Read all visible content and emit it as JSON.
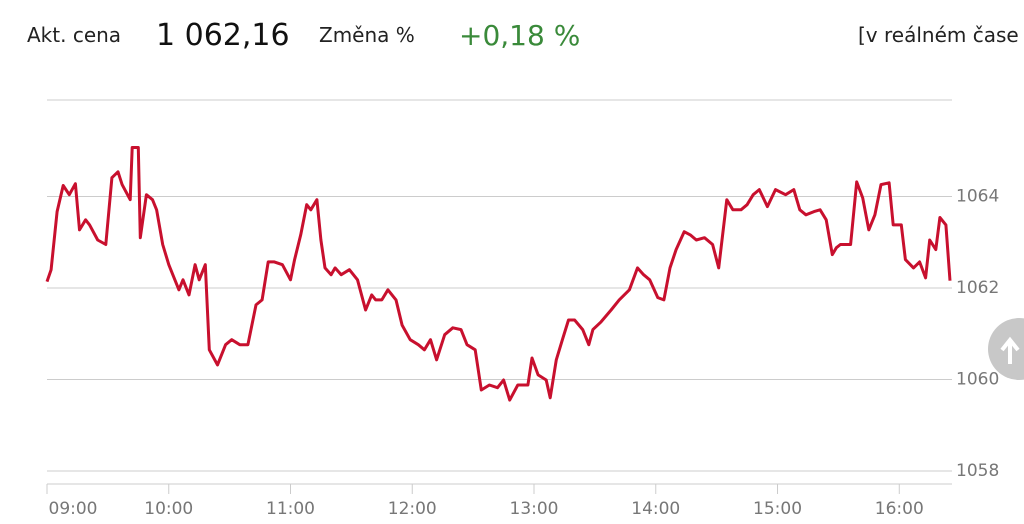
{
  "header": {
    "price_label": "Akt. cena",
    "price": "1 062,16",
    "change_label": "Změna %",
    "change": "+0,18 %",
    "realtime": "[v reálném čase"
  },
  "chart_data": {
    "type": "line",
    "x": [
      "09:00",
      "09:02",
      "09:05",
      "09:08",
      "09:11",
      "09:14",
      "09:16",
      "09:19",
      "09:21",
      "09:25",
      "09:29",
      "09:32",
      "09:35",
      "09:37",
      "09:41",
      "09:42",
      "09:45",
      "09:46",
      "09:49",
      "09:52",
      "09:54",
      "09:57",
      "10:00",
      "10:02",
      "10:05",
      "10:07",
      "10:10",
      "10:13",
      "10:15",
      "10:18",
      "10:20",
      "10:24",
      "10:28",
      "10:31",
      "10:35",
      "10:39",
      "10:43",
      "10:46",
      "10:49",
      "10:52",
      "10:56",
      "11:00",
      "11:02",
      "11:05",
      "11:08",
      "11:10",
      "11:13",
      "11:15",
      "11:17",
      "11:20",
      "11:22",
      "11:25",
      "11:29",
      "11:33",
      "11:37",
      "11:40",
      "11:42",
      "11:45",
      "11:48",
      "11:52",
      "11:55",
      "11:59",
      "12:03",
      "12:06",
      "12:09",
      "12:12",
      "12:16",
      "12:20",
      "12:24",
      "12:27",
      "12:31",
      "12:34",
      "12:38",
      "12:42",
      "12:45",
      "12:48",
      "12:52",
      "12:57",
      "12:59",
      "13:02",
      "13:06",
      "13:08",
      "13:11",
      "13:14",
      "13:17",
      "13:20",
      "13:24",
      "13:27",
      "13:29",
      "13:33",
      "13:38",
      "13:42",
      "13:47",
      "13:51",
      "13:54",
      "13:57",
      "14:01",
      "14:04",
      "14:07",
      "14:10",
      "14:14",
      "14:17",
      "14:20",
      "14:24",
      "14:28",
      "14:31",
      "14:35",
      "14:38",
      "14:42",
      "14:45",
      "14:48",
      "14:51",
      "14:55",
      "14:59",
      "15:04",
      "15:08",
      "15:11",
      "15:14",
      "15:18",
      "15:21",
      "15:24",
      "15:27",
      "15:29",
      "15:31",
      "15:36",
      "15:39",
      "15:42",
      "15:45",
      "15:48",
      "15:51",
      "15:55",
      "15:57",
      "16:01",
      "16:03",
      "16:07",
      "16:10",
      "16:13",
      "16:15",
      "16:18",
      "16:20",
      "16:23",
      "16:25"
    ],
    "series": [
      {
        "name": "Cena",
        "color": "#c8102e",
        "values": [
          1062.14,
          1062.4,
          1063.67,
          1064.24,
          1064.04,
          1064.28,
          1063.27,
          1063.49,
          1063.38,
          1063.05,
          1062.95,
          1064.41,
          1064.54,
          1064.26,
          1063.93,
          1065.07,
          1065.07,
          1063.1,
          1064.04,
          1063.93,
          1063.71,
          1062.95,
          1062.51,
          1062.29,
          1061.96,
          1062.18,
          1061.85,
          1062.51,
          1062.18,
          1062.51,
          1060.65,
          1060.32,
          1060.76,
          1060.87,
          1060.76,
          1060.76,
          1061.63,
          1061.74,
          1062.57,
          1062.57,
          1062.51,
          1062.18,
          1062.62,
          1063.16,
          1063.82,
          1063.71,
          1063.93,
          1063.05,
          1062.44,
          1062.29,
          1062.44,
          1062.29,
          1062.4,
          1062.18,
          1061.52,
          1061.85,
          1061.74,
          1061.74,
          1061.96,
          1061.74,
          1061.19,
          1060.87,
          1060.76,
          1060.65,
          1060.87,
          1060.43,
          1060.98,
          1061.13,
          1061.09,
          1060.76,
          1060.65,
          1059.77,
          1059.88,
          1059.82,
          1059.99,
          1059.55,
          1059.88,
          1059.88,
          1060.47,
          1060.1,
          1059.99,
          1059.6,
          1060.43,
          1060.87,
          1061.3,
          1061.3,
          1061.09,
          1060.76,
          1061.09,
          1061.26,
          1061.52,
          1061.74,
          1061.96,
          1062.44,
          1062.29,
          1062.18,
          1061.79,
          1061.74,
          1062.44,
          1062.84,
          1063.23,
          1063.16,
          1063.05,
          1063.1,
          1062.95,
          1062.44,
          1063.93,
          1063.71,
          1063.71,
          1063.82,
          1064.04,
          1064.15,
          1063.78,
          1064.15,
          1064.04,
          1064.15,
          1063.71,
          1063.6,
          1063.67,
          1063.71,
          1063.49,
          1062.73,
          1062.88,
          1062.95,
          1062.95,
          1064.32,
          1063.97,
          1063.27,
          1063.6,
          1064.26,
          1064.3,
          1063.38,
          1063.38,
          1062.62,
          1062.44,
          1062.57,
          1062.22,
          1063.05,
          1062.84,
          1063.54,
          1063.38,
          1062.16
        ]
      }
    ],
    "xlim": [
      "09:00",
      "16:25"
    ],
    "xticks": [
      "09:00",
      "10:00",
      "11:00",
      "12:00",
      "13:00",
      "14:00",
      "15:00",
      "16:00"
    ],
    "ylim": [
      1058,
      1066
    ],
    "yticks": [
      1058,
      1060,
      1062,
      1064
    ],
    "grid": true
  }
}
